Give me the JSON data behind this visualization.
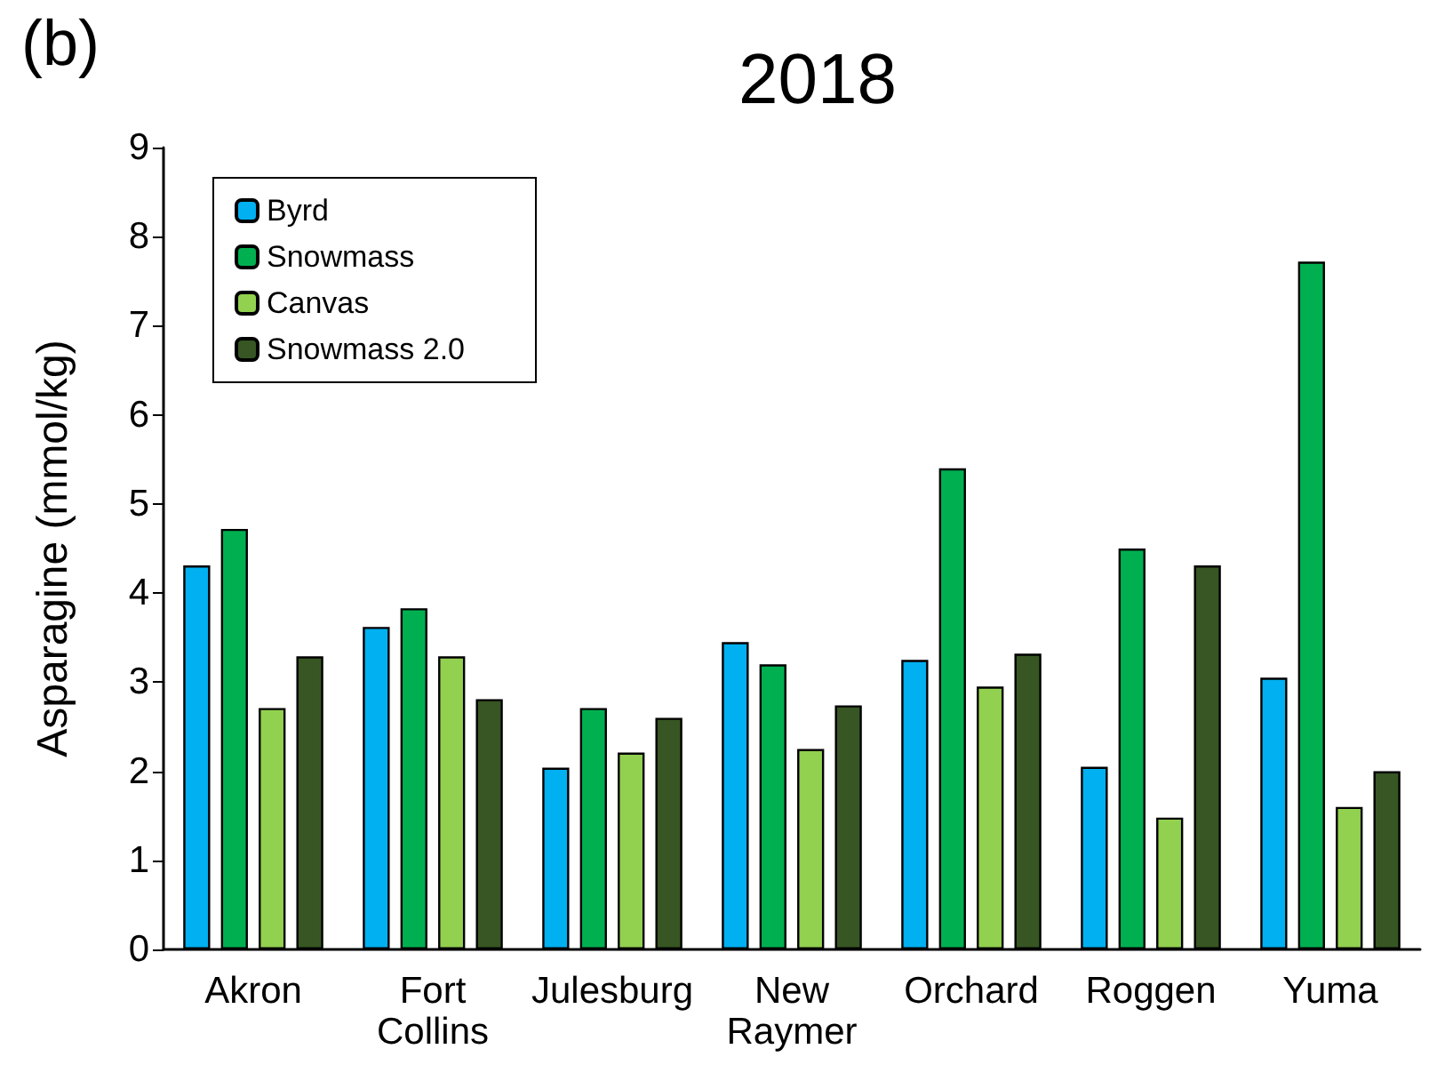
{
  "chart_data": {
    "type": "bar",
    "title": "2018",
    "ylabel": "Asparagine (mmol/kg)",
    "annotations": [
      "(b)"
    ],
    "categories": [
      "Akron",
      "Fort\nCollins",
      "Julesburg",
      "New\nRaymer",
      "Orchard",
      "Roggen",
      "Yuma"
    ],
    "series": [
      {
        "name": "Byrd",
        "color": "#00b0f0",
        "values": [
          4.31,
          3.62,
          2.04,
          3.45,
          3.25,
          2.05,
          3.05
        ]
      },
      {
        "name": "Snowmass",
        "color": "#00b050",
        "values": [
          4.72,
          3.83,
          2.71,
          3.2,
          5.4,
          4.5,
          7.72
        ]
      },
      {
        "name": "Canvas",
        "color": "#92d050",
        "values": [
          2.71,
          3.29,
          2.21,
          2.25,
          2.95,
          1.48,
          1.6
        ]
      },
      {
        "name": "Snowmass 2.0",
        "color": "#375623",
        "values": [
          3.29,
          2.81,
          2.6,
          2.74,
          3.32,
          4.31,
          2.0
        ]
      }
    ],
    "ylim": [
      0,
      9
    ],
    "yticks": [
      0,
      1,
      2,
      3,
      4,
      5,
      6,
      7,
      8,
      9
    ],
    "grid": false,
    "legend": "top left"
  }
}
